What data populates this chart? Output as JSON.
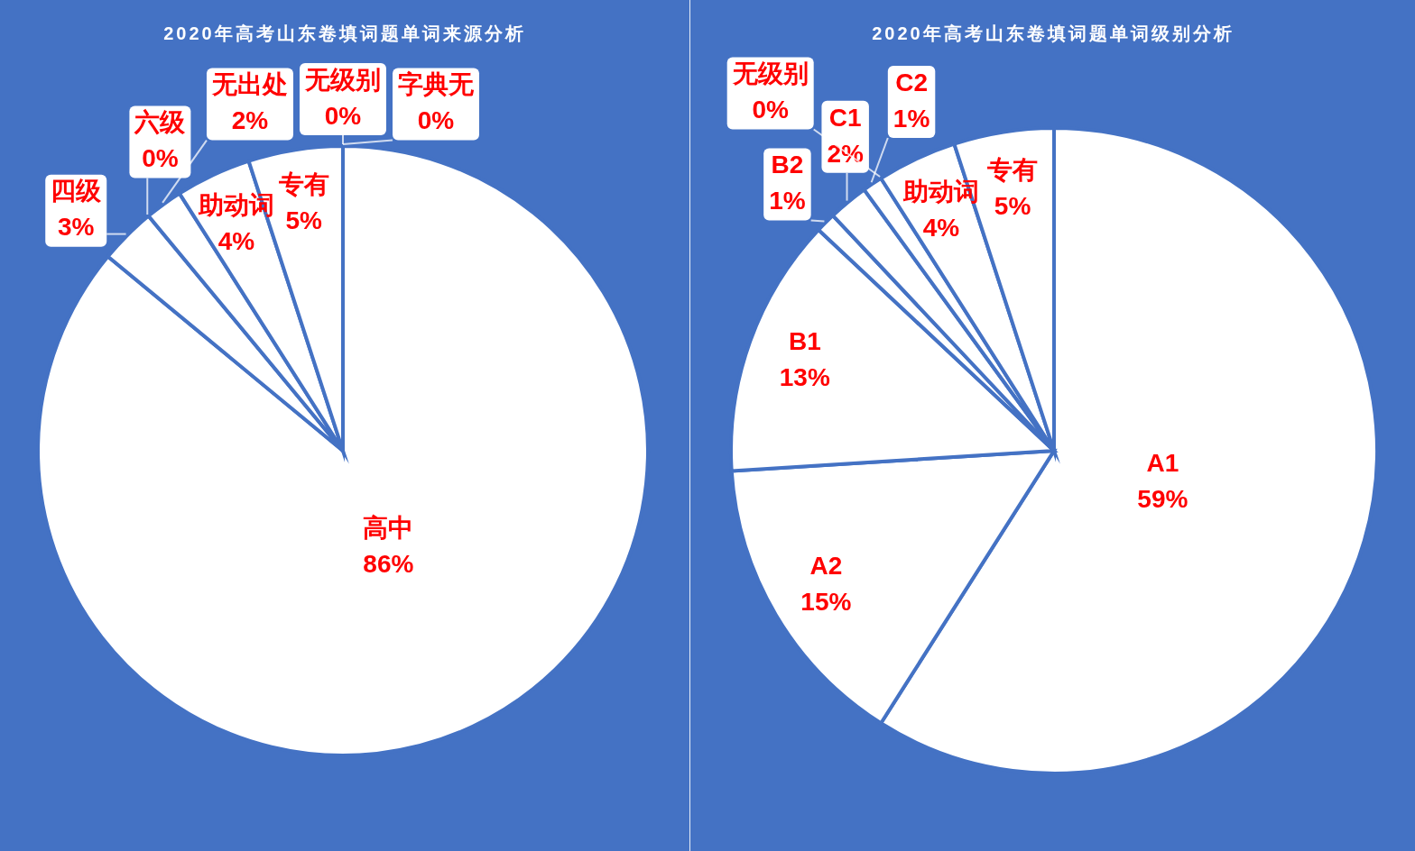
{
  "chart_data": [
    {
      "type": "pie",
      "title": "2020年高考山东卷填词题单词来源分析",
      "categories": [
        "高中",
        "四级",
        "六级",
        "无出处",
        "助动词",
        "专有",
        "无级别",
        "字典无"
      ],
      "values": [
        86,
        3,
        0,
        2,
        4,
        5,
        0,
        0
      ],
      "value_labels": [
        "86%",
        "3%",
        "0%",
        "2%",
        "4%",
        "5%",
        "0%",
        "0%"
      ],
      "colors": [
        "#ffffff",
        "#ffffff",
        "#ffffff",
        "#ffffff",
        "#ffffff",
        "#ffffff",
        "#ffffff",
        "#ffffff"
      ]
    },
    {
      "type": "pie",
      "title": "2020年高考山东卷填词题单词级别分析",
      "categories": [
        "A1",
        "A2",
        "B1",
        "B2",
        "C1",
        "C2",
        "无级别",
        "助动词",
        "专有"
      ],
      "values": [
        59,
        15,
        13,
        1,
        2,
        1,
        0,
        4,
        5
      ],
      "value_labels": [
        "59%",
        "15%",
        "13%",
        "1%",
        "2%",
        "1%",
        "0%",
        "4%",
        "5%"
      ],
      "colors": [
        "#ffffff",
        "#ffffff",
        "#ffffff",
        "#ffffff",
        "#ffffff",
        "#ffffff",
        "#ffffff",
        "#ffffff",
        "#ffffff"
      ]
    }
  ]
}
